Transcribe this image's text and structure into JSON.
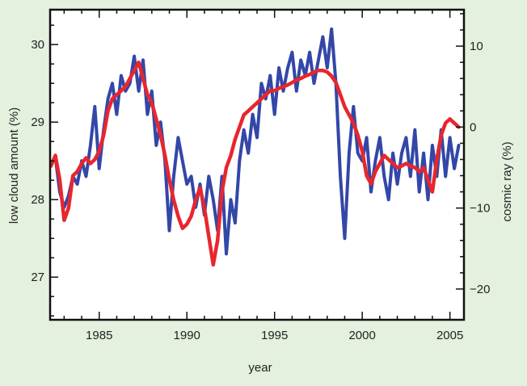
{
  "chart_data": {
    "type": "line",
    "title": "",
    "xlabel": "year",
    "ylabel_left": "low cloud amount (%)",
    "ylabel_right": "cosmic ray (%)",
    "xlim": [
      1982.2,
      2005.8
    ],
    "ylim_left": [
      26.45,
      30.45
    ],
    "ylim_right": [
      -23.8,
      14.5
    ],
    "x_ticks": [
      1985,
      1990,
      1995,
      2000,
      2005
    ],
    "y_left_ticks": [
      27,
      28,
      29,
      30
    ],
    "y_right_ticks": [
      -20,
      -10,
      0,
      10
    ],
    "grid": false,
    "legend": "none",
    "series": [
      {
        "axis": "left",
        "color": "#3347a8",
        "points": [
          [
            1982.25,
            28.45
          ],
          [
            1982.5,
            28.55
          ],
          [
            1982.75,
            28.1
          ],
          [
            1983.0,
            27.9
          ],
          [
            1983.25,
            28.05
          ],
          [
            1983.5,
            28.3
          ],
          [
            1983.75,
            28.2
          ],
          [
            1984.0,
            28.5
          ],
          [
            1984.25,
            28.3
          ],
          [
            1984.5,
            28.7
          ],
          [
            1984.75,
            29.2
          ],
          [
            1985.0,
            28.4
          ],
          [
            1985.25,
            28.9
          ],
          [
            1985.5,
            29.3
          ],
          [
            1985.75,
            29.5
          ],
          [
            1986.0,
            29.1
          ],
          [
            1986.25,
            29.6
          ],
          [
            1986.5,
            29.4
          ],
          [
            1986.75,
            29.5
          ],
          [
            1987.0,
            29.85
          ],
          [
            1987.25,
            29.4
          ],
          [
            1987.5,
            29.8
          ],
          [
            1987.75,
            29.1
          ],
          [
            1988.0,
            29.4
          ],
          [
            1988.25,
            28.7
          ],
          [
            1988.5,
            29.0
          ],
          [
            1988.75,
            28.5
          ],
          [
            1989.0,
            27.6
          ],
          [
            1989.25,
            28.3
          ],
          [
            1989.5,
            28.8
          ],
          [
            1989.75,
            28.5
          ],
          [
            1990.0,
            28.2
          ],
          [
            1990.25,
            28.3
          ],
          [
            1990.5,
            27.9
          ],
          [
            1990.75,
            28.2
          ],
          [
            1991.0,
            27.8
          ],
          [
            1991.25,
            28.3
          ],
          [
            1991.5,
            28.0
          ],
          [
            1991.75,
            27.6
          ],
          [
            1992.0,
            28.3
          ],
          [
            1992.25,
            27.3
          ],
          [
            1992.5,
            28.0
          ],
          [
            1992.75,
            27.7
          ],
          [
            1993.0,
            28.5
          ],
          [
            1993.25,
            28.9
          ],
          [
            1993.5,
            28.6
          ],
          [
            1993.75,
            29.1
          ],
          [
            1994.0,
            28.8
          ],
          [
            1994.25,
            29.5
          ],
          [
            1994.5,
            29.3
          ],
          [
            1994.75,
            29.6
          ],
          [
            1995.0,
            29.1
          ],
          [
            1995.25,
            29.7
          ],
          [
            1995.5,
            29.4
          ],
          [
            1995.75,
            29.7
          ],
          [
            1996.0,
            29.9
          ],
          [
            1996.25,
            29.4
          ],
          [
            1996.5,
            29.8
          ],
          [
            1996.75,
            29.6
          ],
          [
            1997.0,
            29.9
          ],
          [
            1997.25,
            29.5
          ],
          [
            1997.5,
            29.8
          ],
          [
            1997.75,
            30.1
          ],
          [
            1998.0,
            29.7
          ],
          [
            1998.25,
            30.2
          ],
          [
            1998.5,
            29.5
          ],
          [
            1998.75,
            28.3
          ],
          [
            1999.0,
            27.5
          ],
          [
            1999.25,
            28.6
          ],
          [
            1999.5,
            29.2
          ],
          [
            1999.75,
            28.6
          ],
          [
            2000.0,
            28.5
          ],
          [
            2000.25,
            28.8
          ],
          [
            2000.5,
            28.1
          ],
          [
            2000.75,
            28.5
          ],
          [
            2001.0,
            28.8
          ],
          [
            2001.25,
            28.3
          ],
          [
            2001.5,
            28.0
          ],
          [
            2001.75,
            28.6
          ],
          [
            2002.0,
            28.2
          ],
          [
            2002.25,
            28.6
          ],
          [
            2002.5,
            28.8
          ],
          [
            2002.75,
            28.3
          ],
          [
            2003.0,
            28.9
          ],
          [
            2003.25,
            28.1
          ],
          [
            2003.5,
            28.6
          ],
          [
            2003.75,
            28.0
          ],
          [
            2004.0,
            28.7
          ],
          [
            2004.25,
            28.3
          ],
          [
            2004.5,
            28.9
          ],
          [
            2004.75,
            28.3
          ],
          [
            2005.0,
            28.8
          ],
          [
            2005.25,
            28.4
          ],
          [
            2005.5,
            28.7
          ]
        ]
      },
      {
        "axis": "right",
        "color": "#e8262e",
        "points": [
          [
            1982.25,
            -4.8
          ],
          [
            1982.5,
            -3.5
          ],
          [
            1982.75,
            -6.5
          ],
          [
            1983.0,
            -11.5
          ],
          [
            1983.25,
            -10.0
          ],
          [
            1983.5,
            -6.0
          ],
          [
            1983.75,
            -5.5
          ],
          [
            1984.0,
            -4.5
          ],
          [
            1984.25,
            -3.8
          ],
          [
            1984.5,
            -4.5
          ],
          [
            1984.75,
            -4.0
          ],
          [
            1985.0,
            -3.0
          ],
          [
            1985.25,
            -1.0
          ],
          [
            1985.5,
            2.0
          ],
          [
            1985.75,
            3.5
          ],
          [
            1986.0,
            4.0
          ],
          [
            1986.25,
            4.5
          ],
          [
            1986.5,
            5.0
          ],
          [
            1986.75,
            6.0
          ],
          [
            1987.0,
            7.0
          ],
          [
            1987.25,
            8.0
          ],
          [
            1987.5,
            6.0
          ],
          [
            1987.75,
            4.0
          ],
          [
            1988.0,
            3.0
          ],
          [
            1988.25,
            1.0
          ],
          [
            1988.5,
            -1.0
          ],
          [
            1988.75,
            -3.5
          ],
          [
            1989.0,
            -6.5
          ],
          [
            1989.25,
            -9.0
          ],
          [
            1989.5,
            -11.0
          ],
          [
            1989.75,
            -12.5
          ],
          [
            1990.0,
            -12.0
          ],
          [
            1990.25,
            -11.0
          ],
          [
            1990.5,
            -9.0
          ],
          [
            1990.75,
            -7.5
          ],
          [
            1991.0,
            -10.0
          ],
          [
            1991.25,
            -13.5
          ],
          [
            1991.5,
            -17.0
          ],
          [
            1991.75,
            -14.0
          ],
          [
            1992.0,
            -8.0
          ],
          [
            1992.25,
            -5.0
          ],
          [
            1992.5,
            -3.5
          ],
          [
            1992.75,
            -1.5
          ],
          [
            1993.0,
            0.0
          ],
          [
            1993.25,
            1.5
          ],
          [
            1993.5,
            2.0
          ],
          [
            1993.75,
            2.5
          ],
          [
            1994.0,
            3.0
          ],
          [
            1994.25,
            3.5
          ],
          [
            1994.5,
            4.0
          ],
          [
            1994.75,
            4.5
          ],
          [
            1995.0,
            4.5
          ],
          [
            1995.25,
            4.8
          ],
          [
            1995.5,
            5.0
          ],
          [
            1995.75,
            5.2
          ],
          [
            1996.0,
            5.5
          ],
          [
            1996.25,
            5.8
          ],
          [
            1996.5,
            6.0
          ],
          [
            1996.75,
            6.3
          ],
          [
            1997.0,
            6.5
          ],
          [
            1997.25,
            6.8
          ],
          [
            1997.5,
            7.0
          ],
          [
            1997.75,
            7.0
          ],
          [
            1998.0,
            6.8
          ],
          [
            1998.25,
            6.3
          ],
          [
            1998.5,
            5.5
          ],
          [
            1998.75,
            4.0
          ],
          [
            1999.0,
            2.5
          ],
          [
            1999.25,
            1.5
          ],
          [
            1999.5,
            0.5
          ],
          [
            1999.75,
            -1.0
          ],
          [
            2000.0,
            -3.0
          ],
          [
            2000.25,
            -6.0
          ],
          [
            2000.5,
            -7.0
          ],
          [
            2000.75,
            -5.5
          ],
          [
            2001.0,
            -4.5
          ],
          [
            2001.25,
            -3.5
          ],
          [
            2001.5,
            -4.0
          ],
          [
            2001.75,
            -4.5
          ],
          [
            2002.0,
            -5.0
          ],
          [
            2002.25,
            -4.8
          ],
          [
            2002.5,
            -4.5
          ],
          [
            2002.75,
            -4.8
          ],
          [
            2003.0,
            -5.0
          ],
          [
            2003.25,
            -5.5
          ],
          [
            2003.5,
            -5.0
          ],
          [
            2003.75,
            -6.5
          ],
          [
            2004.0,
            -8.0
          ],
          [
            2004.25,
            -4.0
          ],
          [
            2004.5,
            -1.0
          ],
          [
            2004.75,
            0.5
          ],
          [
            2005.0,
            1.0
          ],
          [
            2005.25,
            0.5
          ],
          [
            2005.5,
            0.0
          ]
        ]
      }
    ]
  }
}
